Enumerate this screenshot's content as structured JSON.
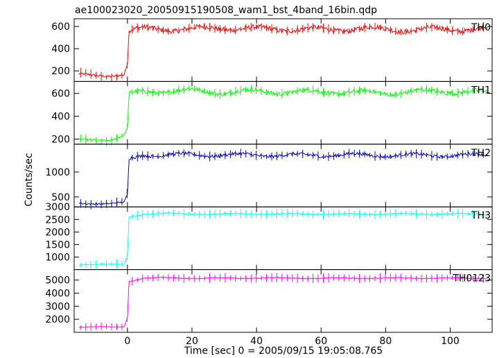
{
  "chart_data": {
    "type": "line",
    "title": "ae100023020_20050915190508_wam1_bst_4band_16bin.qdp",
    "xlabel": "Time [sec] 0 = 2005/09/15 19:05:08.765",
    "ylabel": "Counts/sec",
    "xlim": [
      -16.5,
      113
    ],
    "x_ticks": [
      0,
      20,
      40,
      60,
      80,
      100
    ],
    "x_tick_labels": [
      "0",
      "20",
      "40",
      "60",
      "80",
      "100"
    ],
    "grid": false,
    "panels": [
      {
        "name": "TH0",
        "color": "#ff0000",
        "ylim": [
          105,
          670
        ],
        "y_ticks": [
          200,
          400,
          600
        ],
        "y_tick_labels": [
          "200",
          "400",
          "600"
        ],
        "pre_level": 160,
        "post_level": 575,
        "noise": 35,
        "series": [
          {
            "t": -15,
            "v": 165
          },
          {
            "t": -10,
            "v": 155
          },
          {
            "t": -5,
            "v": 160
          },
          {
            "t": -1,
            "v": 170
          },
          {
            "t": 0,
            "v": 260
          },
          {
            "t": 0.5,
            "v": 560
          },
          {
            "t": 5,
            "v": 575
          },
          {
            "t": 10,
            "v": 580
          },
          {
            "t": 20,
            "v": 575
          },
          {
            "t": 30,
            "v": 590
          },
          {
            "t": 40,
            "v": 575
          },
          {
            "t": 50,
            "v": 580
          },
          {
            "t": 60,
            "v": 570
          },
          {
            "t": 70,
            "v": 580
          },
          {
            "t": 80,
            "v": 575
          },
          {
            "t": 90,
            "v": 570
          },
          {
            "t": 100,
            "v": 575
          },
          {
            "t": 110,
            "v": 580
          }
        ]
      },
      {
        "name": "TH1",
        "color": "#00ff00",
        "ylim": [
          155,
          705
        ],
        "y_ticks": [
          200,
          400,
          600
        ],
        "y_tick_labels": [
          "200",
          "400",
          "600"
        ],
        "pre_level": 195,
        "post_level": 615,
        "noise": 30,
        "series": [
          {
            "t": -15,
            "v": 190
          },
          {
            "t": -10,
            "v": 195
          },
          {
            "t": -5,
            "v": 195
          },
          {
            "t": -1,
            "v": 230
          },
          {
            "t": 0,
            "v": 300
          },
          {
            "t": 0.5,
            "v": 590
          },
          {
            "t": 5,
            "v": 615
          },
          {
            "t": 10,
            "v": 620
          },
          {
            "t": 20,
            "v": 625
          },
          {
            "t": 30,
            "v": 610
          },
          {
            "t": 40,
            "v": 620
          },
          {
            "t": 50,
            "v": 610
          },
          {
            "t": 60,
            "v": 615
          },
          {
            "t": 70,
            "v": 610
          },
          {
            "t": 80,
            "v": 605
          },
          {
            "t": 90,
            "v": 615
          },
          {
            "t": 100,
            "v": 620
          },
          {
            "t": 110,
            "v": 610
          }
        ]
      },
      {
        "name": "TH2",
        "color": "#0000cc",
        "ylim": [
          300,
          1560
        ],
        "y_ticks": [
          500,
          1000
        ],
        "y_tick_labels": [
          "500",
          "1000"
        ],
        "pre_level": 370,
        "post_level": 1340,
        "noise": 50,
        "series": [
          {
            "t": -15,
            "v": 370
          },
          {
            "t": -10,
            "v": 375
          },
          {
            "t": -5,
            "v": 365
          },
          {
            "t": -1,
            "v": 380
          },
          {
            "t": 0,
            "v": 560
          },
          {
            "t": 0.5,
            "v": 1250
          },
          {
            "t": 5,
            "v": 1350
          },
          {
            "t": 10,
            "v": 1340
          },
          {
            "t": 20,
            "v": 1350
          },
          {
            "t": 30,
            "v": 1340
          },
          {
            "t": 40,
            "v": 1345
          },
          {
            "t": 50,
            "v": 1335
          },
          {
            "t": 60,
            "v": 1340
          },
          {
            "t": 70,
            "v": 1345
          },
          {
            "t": 80,
            "v": 1335
          },
          {
            "t": 90,
            "v": 1340
          },
          {
            "t": 100,
            "v": 1335
          },
          {
            "t": 110,
            "v": 1340
          }
        ]
      },
      {
        "name": "TH3",
        "color": "#00ffff",
        "ylim": [
          500,
          3000
        ],
        "y_ticks": [
          1000,
          1500,
          2000,
          2500,
          3000
        ],
        "y_tick_labels": [
          "1000",
          "1500",
          "2000",
          "2500",
          "3000"
        ],
        "pre_level": 700,
        "post_level": 2720,
        "noise": 40,
        "series": [
          {
            "t": -15,
            "v": 700
          },
          {
            "t": -10,
            "v": 720
          },
          {
            "t": -5,
            "v": 700
          },
          {
            "t": -1,
            "v": 705
          },
          {
            "t": 0,
            "v": 1050
          },
          {
            "t": 0.5,
            "v": 2600
          },
          {
            "t": 5,
            "v": 2720
          },
          {
            "t": 10,
            "v": 2730
          },
          {
            "t": 20,
            "v": 2720
          },
          {
            "t": 30,
            "v": 2710
          },
          {
            "t": 40,
            "v": 2725
          },
          {
            "t": 50,
            "v": 2715
          },
          {
            "t": 60,
            "v": 2720
          },
          {
            "t": 70,
            "v": 2710
          },
          {
            "t": 80,
            "v": 2720
          },
          {
            "t": 90,
            "v": 2715
          },
          {
            "t": 100,
            "v": 2720
          },
          {
            "t": 110,
            "v": 2710
          }
        ]
      },
      {
        "name": "TH0123",
        "color": "#ff00ff",
        "ylim": [
          1000,
          5800
        ],
        "y_ticks": [
          2000,
          3000,
          4000,
          5000
        ],
        "y_tick_labels": [
          "2000",
          "3000",
          "4000",
          "5000"
        ],
        "pre_level": 1400,
        "post_level": 5150,
        "noise": 60,
        "series": [
          {
            "t": -15,
            "v": 1400
          },
          {
            "t": -10,
            "v": 1420
          },
          {
            "t": -5,
            "v": 1400
          },
          {
            "t": -1,
            "v": 1420
          },
          {
            "t": 0,
            "v": 2100
          },
          {
            "t": 0.5,
            "v": 4900
          },
          {
            "t": 5,
            "v": 5150
          },
          {
            "t": 10,
            "v": 5160
          },
          {
            "t": 20,
            "v": 5150
          },
          {
            "t": 30,
            "v": 5140
          },
          {
            "t": 40,
            "v": 5160
          },
          {
            "t": 50,
            "v": 5150
          },
          {
            "t": 60,
            "v": 5140
          },
          {
            "t": 70,
            "v": 5150
          },
          {
            "t": 80,
            "v": 5145
          },
          {
            "t": 90,
            "v": 5150
          },
          {
            "t": 100,
            "v": 5140
          },
          {
            "t": 110,
            "v": 5150
          }
        ]
      }
    ]
  }
}
